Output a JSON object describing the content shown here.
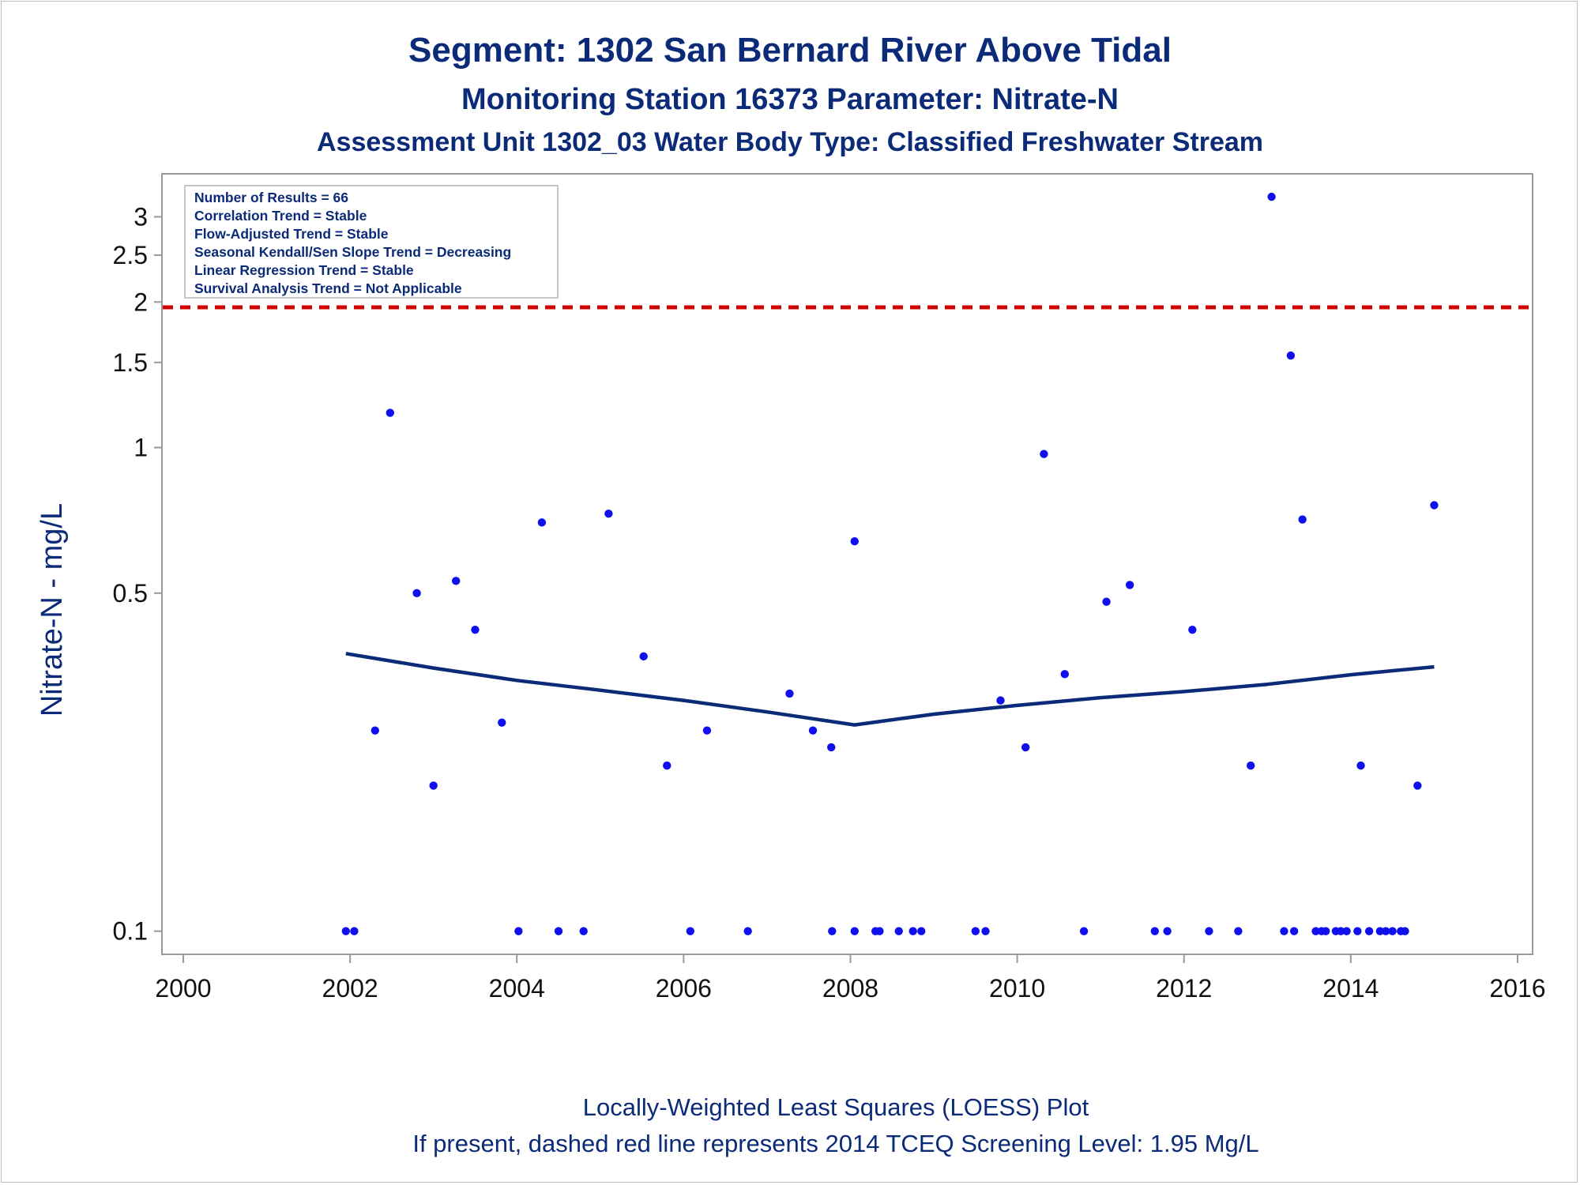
{
  "colors": {
    "title": "#0b2a78",
    "points": "#1010ee",
    "loess": "#0b2a78",
    "screening_line": "#d10000",
    "axis": "#999999"
  },
  "chart_data": {
    "type": "scatter",
    "title": "Segment: 1302  San Bernard River Above Tidal",
    "subtitle": "Monitoring Station 16373 Parameter: Nitrate-N",
    "subtitle2": "Assessment Unit 1302_03   Water Body Type: Classified Freshwater Stream",
    "xlabel": "",
    "ylabel": "Nitrate-N - mg/L",
    "footnote1": "Locally-Weighted Least Squares (LOESS) Plot",
    "footnote2": "If present, dashed red line represents 2014 TCEQ Screening Level: 1.95 Mg/L",
    "x_scale": "linear (year)",
    "y_scale": "log",
    "xlim": [
      2000,
      2016
    ],
    "ylim": [
      0.093,
      3.6
    ],
    "xticks": [
      2000,
      2002,
      2004,
      2006,
      2008,
      2010,
      2012,
      2014,
      2016
    ],
    "xtick_labels": [
      "2000",
      "2002",
      "2004",
      "2006",
      "2008",
      "2010",
      "2012",
      "2014",
      "2016"
    ],
    "yticks": [
      0.1,
      0.5,
      1,
      1.5,
      2,
      2.5,
      3
    ],
    "ytick_labels": [
      "0.1",
      "0.5",
      "1",
      "1.5",
      "2",
      "2.5",
      "3"
    ],
    "grid": false,
    "legend": "none",
    "stats_box": {
      "position": "top-left",
      "lines": [
        "Number of Results = 66",
        "Correlation Trend = Stable",
        "Flow-Adjusted Trend = Stable",
        "Seasonal Kendall/Sen Slope Trend = Decreasing",
        "Linear Regression Trend = Stable",
        "Survival Analysis Trend = Not Applicable"
      ]
    },
    "reference_line": {
      "y": 1.95,
      "style": "dashed",
      "color": "#d10000"
    },
    "points": {
      "x": [
        2001.95,
        2002.05,
        2002.3,
        2002.48,
        2002.8,
        2003.0,
        2003.27,
        2003.5,
        2003.82,
        2004.02,
        2004.3,
        2004.5,
        2004.8,
        2005.1,
        2005.52,
        2005.8,
        2006.08,
        2006.28,
        2006.77,
        2007.27,
        2007.55,
        2007.77,
        2007.78,
        2008.05,
        2008.05,
        2008.3,
        2008.35,
        2008.58,
        2008.75,
        2008.85,
        2009.5,
        2009.62,
        2009.8,
        2010.1,
        2010.32,
        2010.57,
        2010.8,
        2011.07,
        2011.35,
        2011.65,
        2011.8,
        2012.1,
        2012.3,
        2012.65,
        2012.8,
        2013.05,
        2013.2,
        2013.28,
        2013.32,
        2013.42,
        2013.58,
        2013.65,
        2013.7,
        2013.82,
        2013.88,
        2013.95,
        2014.08,
        2014.12,
        2014.22,
        2014.35,
        2014.42,
        2014.5,
        2014.6,
        2014.65,
        2014.8,
        2015.0
      ],
      "y": [
        0.1,
        0.1,
        0.26,
        1.18,
        0.5,
        0.2,
        0.53,
        0.42,
        0.27,
        0.1,
        0.7,
        0.1,
        0.1,
        0.73,
        0.37,
        0.22,
        0.1,
        0.26,
        0.1,
        0.31,
        0.26,
        0.24,
        0.1,
        0.64,
        0.1,
        0.1,
        0.1,
        0.1,
        0.1,
        0.1,
        0.1,
        0.1,
        0.3,
        0.24,
        0.97,
        0.34,
        0.1,
        0.48,
        0.52,
        0.1,
        0.1,
        0.42,
        0.1,
        0.1,
        0.22,
        3.3,
        0.1,
        1.55,
        0.1,
        0.71,
        0.1,
        0.1,
        0.1,
        0.1,
        0.1,
        0.1,
        0.1,
        0.22,
        0.1,
        0.1,
        0.1,
        0.1,
        0.1,
        0.1,
        0.2,
        0.76
      ]
    },
    "loess_curve": {
      "x": [
        2001.95,
        2003.0,
        2004.0,
        2005.0,
        2006.0,
        2007.0,
        2008.05,
        2009.0,
        2010.0,
        2011.0,
        2012.0,
        2013.0,
        2014.0,
        2015.0
      ],
      "y": [
        0.375,
        0.35,
        0.33,
        0.315,
        0.3,
        0.284,
        0.267,
        0.281,
        0.293,
        0.304,
        0.313,
        0.324,
        0.339,
        0.352
      ]
    }
  }
}
